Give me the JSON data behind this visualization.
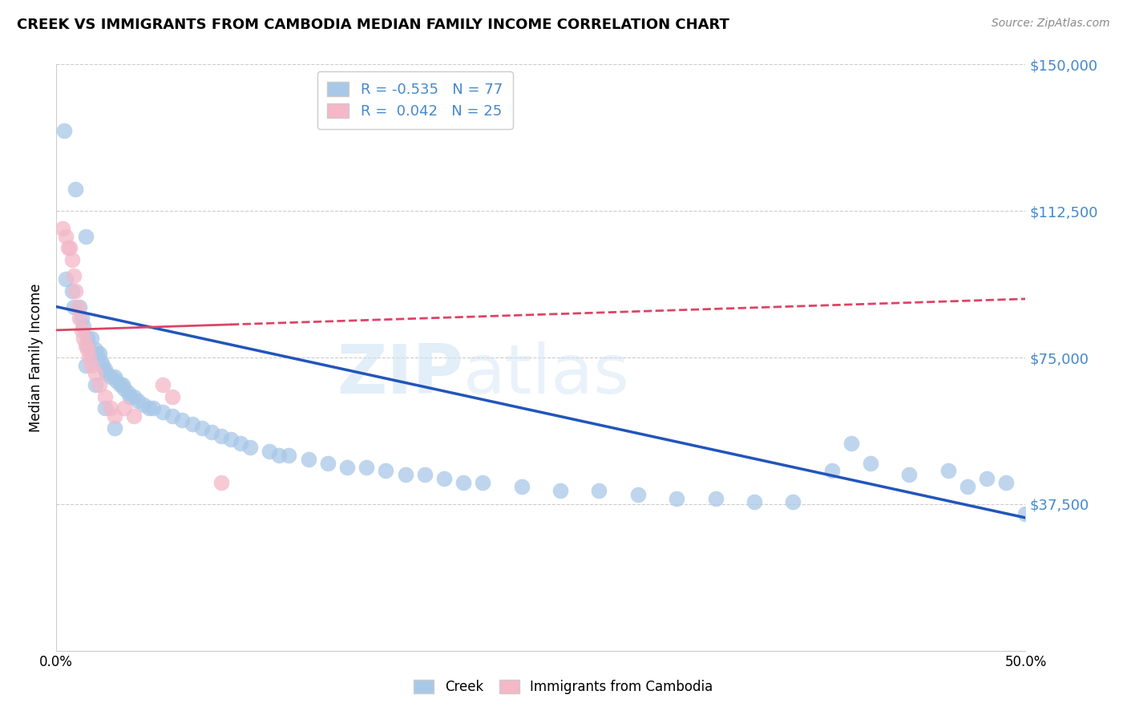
{
  "title": "CREEK VS IMMIGRANTS FROM CAMBODIA MEDIAN FAMILY INCOME CORRELATION CHART",
  "source": "Source: ZipAtlas.com",
  "ylabel": "Median Family Income",
  "yticks": [
    0,
    37500,
    75000,
    112500,
    150000
  ],
  "ytick_labels": [
    "",
    "$37,500",
    "$75,000",
    "$112,500",
    "$150,000"
  ],
  "xlim": [
    0.0,
    0.5
  ],
  "ylim": [
    0,
    150000
  ],
  "creek_color": "#a8c8e8",
  "cambodia_color": "#f4b8c8",
  "creek_line_color": "#2255bb",
  "cambodia_line_color": "#dd4466",
  "creek_R": -0.535,
  "cambodia_R": 0.042,
  "creek_N": 77,
  "cambodia_N": 25,
  "creek_line_x0": 0.0,
  "creek_line_y0": 88000,
  "creek_line_x1": 0.5,
  "creek_line_y1": 34000,
  "cambodia_line_x0": 0.0,
  "cambodia_line_y0": 82000,
  "cambodia_line_x1": 0.5,
  "cambodia_line_y1": 90000,
  "creek_scatter_x": [
    0.004,
    0.01,
    0.015,
    0.005,
    0.008,
    0.009,
    0.012,
    0.013,
    0.014,
    0.016,
    0.016,
    0.018,
    0.018,
    0.02,
    0.021,
    0.022,
    0.023,
    0.024,
    0.025,
    0.026,
    0.028,
    0.03,
    0.031,
    0.033,
    0.034,
    0.035,
    0.037,
    0.038,
    0.04,
    0.042,
    0.045,
    0.048,
    0.05,
    0.055,
    0.06,
    0.065,
    0.07,
    0.075,
    0.08,
    0.085,
    0.09,
    0.095,
    0.1,
    0.11,
    0.115,
    0.12,
    0.13,
    0.14,
    0.15,
    0.16,
    0.17,
    0.18,
    0.19,
    0.2,
    0.21,
    0.22,
    0.24,
    0.26,
    0.28,
    0.3,
    0.32,
    0.34,
    0.36,
    0.38,
    0.4,
    0.41,
    0.42,
    0.44,
    0.46,
    0.47,
    0.48,
    0.49,
    0.5,
    0.015,
    0.02,
    0.025,
    0.03
  ],
  "creek_scatter_y": [
    133000,
    118000,
    106000,
    95000,
    92000,
    88000,
    88000,
    85000,
    83000,
    80000,
    78000,
    80000,
    76000,
    77000,
    76000,
    76000,
    74000,
    73000,
    72000,
    71000,
    70000,
    70000,
    69000,
    68000,
    68000,
    67000,
    66000,
    65000,
    65000,
    64000,
    63000,
    62000,
    62000,
    61000,
    60000,
    59000,
    58000,
    57000,
    56000,
    55000,
    54000,
    53000,
    52000,
    51000,
    50000,
    50000,
    49000,
    48000,
    47000,
    47000,
    46000,
    45000,
    45000,
    44000,
    43000,
    43000,
    42000,
    41000,
    41000,
    40000,
    39000,
    39000,
    38000,
    38000,
    46000,
    53000,
    48000,
    45000,
    46000,
    42000,
    44000,
    43000,
    35000,
    73000,
    68000,
    62000,
    57000
  ],
  "cambodia_scatter_x": [
    0.003,
    0.005,
    0.006,
    0.007,
    0.008,
    0.009,
    0.01,
    0.011,
    0.012,
    0.013,
    0.014,
    0.015,
    0.016,
    0.017,
    0.018,
    0.02,
    0.022,
    0.025,
    0.028,
    0.03,
    0.035,
    0.04,
    0.055,
    0.06,
    0.085
  ],
  "cambodia_scatter_y": [
    108000,
    106000,
    103000,
    103000,
    100000,
    96000,
    92000,
    88000,
    85000,
    82000,
    80000,
    78000,
    77000,
    75000,
    73000,
    71000,
    68000,
    65000,
    62000,
    60000,
    62000,
    60000,
    68000,
    65000,
    43000
  ]
}
